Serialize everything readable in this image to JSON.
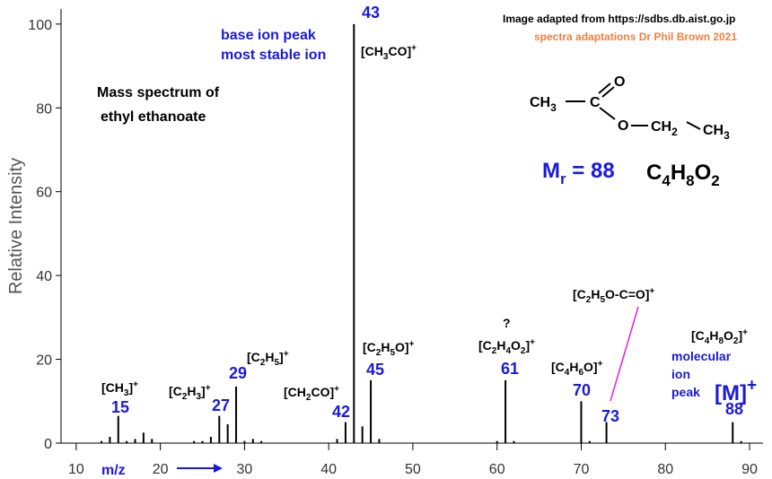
{
  "chart_data": {
    "type": "bar",
    "xlabel": "m/z",
    "ylabel": "Relative Intensity",
    "color": "#000000",
    "x": [
      13,
      14,
      15,
      16,
      17,
      18,
      19,
      24,
      25,
      26,
      27,
      28,
      29,
      30,
      31,
      32,
      41,
      42,
      43,
      44,
      45,
      46,
      60,
      61,
      62,
      70,
      71,
      73,
      88,
      89
    ],
    "values": [
      0.5,
      1.5,
      6.5,
      0.5,
      1,
      2.5,
      1,
      0.5,
      0.5,
      1.5,
      6.5,
      4.5,
      13.5,
      0.5,
      1,
      0.5,
      1,
      5,
      100,
      4,
      15,
      1,
      0.5,
      15,
      0.5,
      10,
      0.5,
      5,
      5,
      0.5
    ],
    "xlim": [
      8.2,
      91.6
    ],
    "ylim": [
      0,
      103.6
    ],
    "xticks": [
      10,
      20,
      30,
      40,
      50,
      60,
      70,
      80,
      90
    ],
    "yticks": [
      0,
      20,
      40,
      60,
      80,
      100
    ],
    "annotations": [
      [
        {
          "t": "[CH"
        },
        {
          "sub": "3"
        },
        {
          "t": "]"
        },
        {
          "sup": "+"
        }
      ],
      [
        {
          "t": "[C"
        },
        {
          "sub": "2"
        },
        {
          "t": "H"
        },
        {
          "sub": "3"
        },
        {
          "t": "]"
        },
        {
          "sup": "+"
        }
      ],
      [
        {
          "t": "[C"
        },
        {
          "sub": "2"
        },
        {
          "t": "H"
        },
        {
          "sub": "5"
        },
        {
          "t": "]"
        },
        {
          "sup": "+"
        }
      ],
      [
        {
          "t": "[CH"
        },
        {
          "sub": "2"
        },
        {
          "t": "CO]"
        },
        {
          "sup": "+"
        }
      ],
      [
        {
          "t": "[CH"
        },
        {
          "sub": "3"
        },
        {
          "t": "CO]"
        },
        {
          "sup": "+"
        }
      ],
      [
        {
          "t": "[C"
        },
        {
          "sub": "2"
        },
        {
          "t": "H"
        },
        {
          "sub": "5"
        },
        {
          "t": "O]"
        },
        {
          "sup": "+"
        }
      ],
      [
        {
          "t": "?"
        }
      ],
      [
        {
          "t": "[C"
        },
        {
          "sub": "2"
        },
        {
          "t": "H"
        },
        {
          "sub": "4"
        },
        {
          "t": "O"
        },
        {
          "sub": "2"
        },
        {
          "t": "]"
        },
        {
          "sup": "+"
        }
      ],
      [
        {
          "t": "[C"
        },
        {
          "sub": "4"
        },
        {
          "t": "H"
        },
        {
          "sub": "6"
        },
        {
          "t": "O]"
        },
        {
          "sup": "+"
        }
      ],
      [
        {
          "t": "[C"
        },
        {
          "sub": "2"
        },
        {
          "t": "H"
        },
        {
          "sub": "5"
        },
        {
          "t": "O-C=O]"
        },
        {
          "sup": "+"
        }
      ],
      [
        {
          "t": "[C"
        },
        {
          "sub": "4"
        },
        {
          "t": "H"
        },
        {
          "sub": "8"
        },
        {
          "t": "O"
        },
        {
          "sub": "2"
        },
        {
          "t": "]"
        },
        {
          "sup": "+"
        }
      ]
    ]
  },
  "notes": {
    "base_peak": [
      "base ion peak",
      "most stable ion"
    ],
    "title": [
      "Mass spectrum of",
      "ethyl ethanoate"
    ],
    "credit": "Image adapted from https://sdbs.db.aist.go.jp",
    "credit2": "spectra adaptations Dr Phil Brown 2021",
    "mr": [
      {
        "t": "M"
      },
      {
        "sub": "r"
      },
      {
        "t": " = 88"
      }
    ],
    "formula": [
      {
        "t": "C"
      },
      {
        "sub": "4"
      },
      {
        "t": "H"
      },
      {
        "sub": "8"
      },
      {
        "t": "O"
      },
      {
        "sub": "2"
      }
    ],
    "molecular": [
      "molecular",
      "ion",
      "peak"
    ],
    "m_ion": [
      {
        "t": "[M]"
      },
      {
        "sup": "+"
      }
    ],
    "structure": [
      [
        {
          "t": "CH"
        },
        {
          "sub": "3"
        }
      ],
      [
        {
          "t": "C"
        }
      ],
      [
        {
          "t": "O"
        }
      ],
      [
        {
          "t": "O"
        }
      ],
      [
        {
          "t": "CH"
        },
        {
          "sub": "2"
        }
      ],
      [
        {
          "t": "CH"
        },
        {
          "sub": "3"
        }
      ]
    ]
  }
}
